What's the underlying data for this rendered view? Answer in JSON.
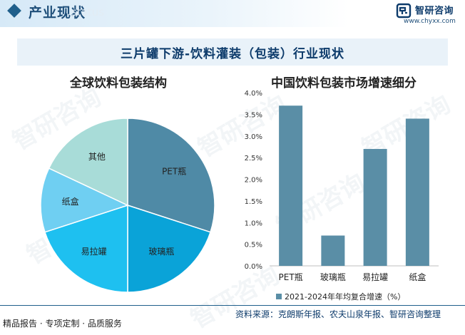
{
  "header": {
    "title": "产业现状",
    "watermark": "status",
    "brand_name": "智研咨询",
    "brand_url": "www.chyxx.com"
  },
  "main_title": "三片罐下游-饮料灌装（包装）行业现状",
  "watermark_text": "智研咨询",
  "footer": {
    "left": "精品报告 · 专项定制 · 品质服务",
    "right": "资料来源：克朗斯年报、农夫山泉年报、智研咨询整理"
  },
  "colors": {
    "header_blue": "#1f5f8b",
    "title_navy": "#0d3b6b",
    "bar": "#5a8ea6",
    "pie": [
      "#4f8aa6",
      "#0aa3d8",
      "#1ec0f0",
      "#6fcff2",
      "#a8dcd8"
    ]
  },
  "chart_data": [
    {
      "type": "pie",
      "title": "全球饮料包装结构",
      "slices": [
        {
          "label": "PET瓶",
          "value": 30
        },
        {
          "label": "玻璃瓶",
          "value": 20
        },
        {
          "label": "易拉罐",
          "value": 20
        },
        {
          "label": "纸盒",
          "value": 12
        },
        {
          "label": "其他",
          "value": 18
        }
      ]
    },
    {
      "type": "bar",
      "title": "中国饮料包装市场增速细分",
      "categories": [
        "PET瓶",
        "玻璃瓶",
        "易拉罐",
        "纸盒"
      ],
      "series": [
        {
          "name": "2021-2024年年均复合增速（%）",
          "values": [
            3.7,
            0.7,
            2.7,
            3.4
          ]
        }
      ],
      "ylim": [
        0,
        4.0
      ],
      "yticks": [
        "0.0%",
        "0.5%",
        "1.0%",
        "1.5%",
        "2.0%",
        "2.5%",
        "3.0%",
        "3.5%",
        "4.0%"
      ],
      "legend": "bottom"
    }
  ]
}
